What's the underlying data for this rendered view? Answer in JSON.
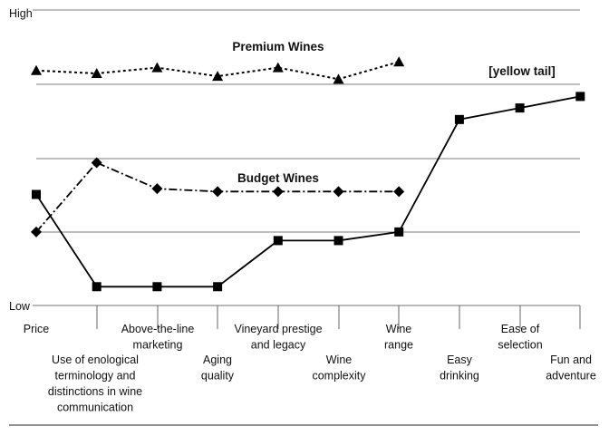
{
  "chart_data": {
    "type": "line",
    "title": "",
    "xlabel": "",
    "ylabel": "",
    "y_axis": {
      "high_label": "High",
      "low_label": "Low"
    },
    "ylim": [
      0,
      10
    ],
    "grid": true,
    "categories": [
      {
        "id": "price",
        "lines": [
          "Price"
        ]
      },
      {
        "id": "enological-terminology",
        "lines": [
          "Use of enological",
          "terminology and",
          "distinctions in wine",
          "communication"
        ]
      },
      {
        "id": "above-the-line-marketing",
        "lines": [
          "Above-the-line",
          "marketing"
        ]
      },
      {
        "id": "aging-quality",
        "lines": [
          "Aging",
          "quality"
        ]
      },
      {
        "id": "vineyard-prestige",
        "lines": [
          "Vineyard prestige",
          "and legacy"
        ]
      },
      {
        "id": "wine-complexity",
        "lines": [
          "Wine",
          "complexity"
        ]
      },
      {
        "id": "wine-range",
        "lines": [
          "Wine",
          "range"
        ]
      },
      {
        "id": "easy-drinking",
        "lines": [
          "Easy",
          "drinking"
        ]
      },
      {
        "id": "ease-of-selection",
        "lines": [
          "Ease of",
          "selection"
        ]
      },
      {
        "id": "fun-and-adventure",
        "lines": [
          "Fun and",
          "adventure"
        ]
      }
    ],
    "series": [
      {
        "name": "Premium Wines",
        "marker": "triangle",
        "line_style": "dotted",
        "values": [
          7.9,
          7.8,
          8.0,
          7.7,
          8.0,
          7.6,
          8.2,
          null,
          null,
          null
        ]
      },
      {
        "name": "[yellow tail]",
        "marker": "square",
        "line_style": "solid",
        "values": [
          3.6,
          0.4,
          0.4,
          0.4,
          2.0,
          2.0,
          2.3,
          6.2,
          6.6,
          7.0
        ]
      },
      {
        "name": "Budget Wines",
        "marker": "diamond",
        "line_style": "dashdot",
        "values": [
          2.3,
          4.7,
          3.8,
          3.7,
          3.7,
          3.7,
          3.7,
          null,
          null,
          null
        ]
      }
    ]
  }
}
